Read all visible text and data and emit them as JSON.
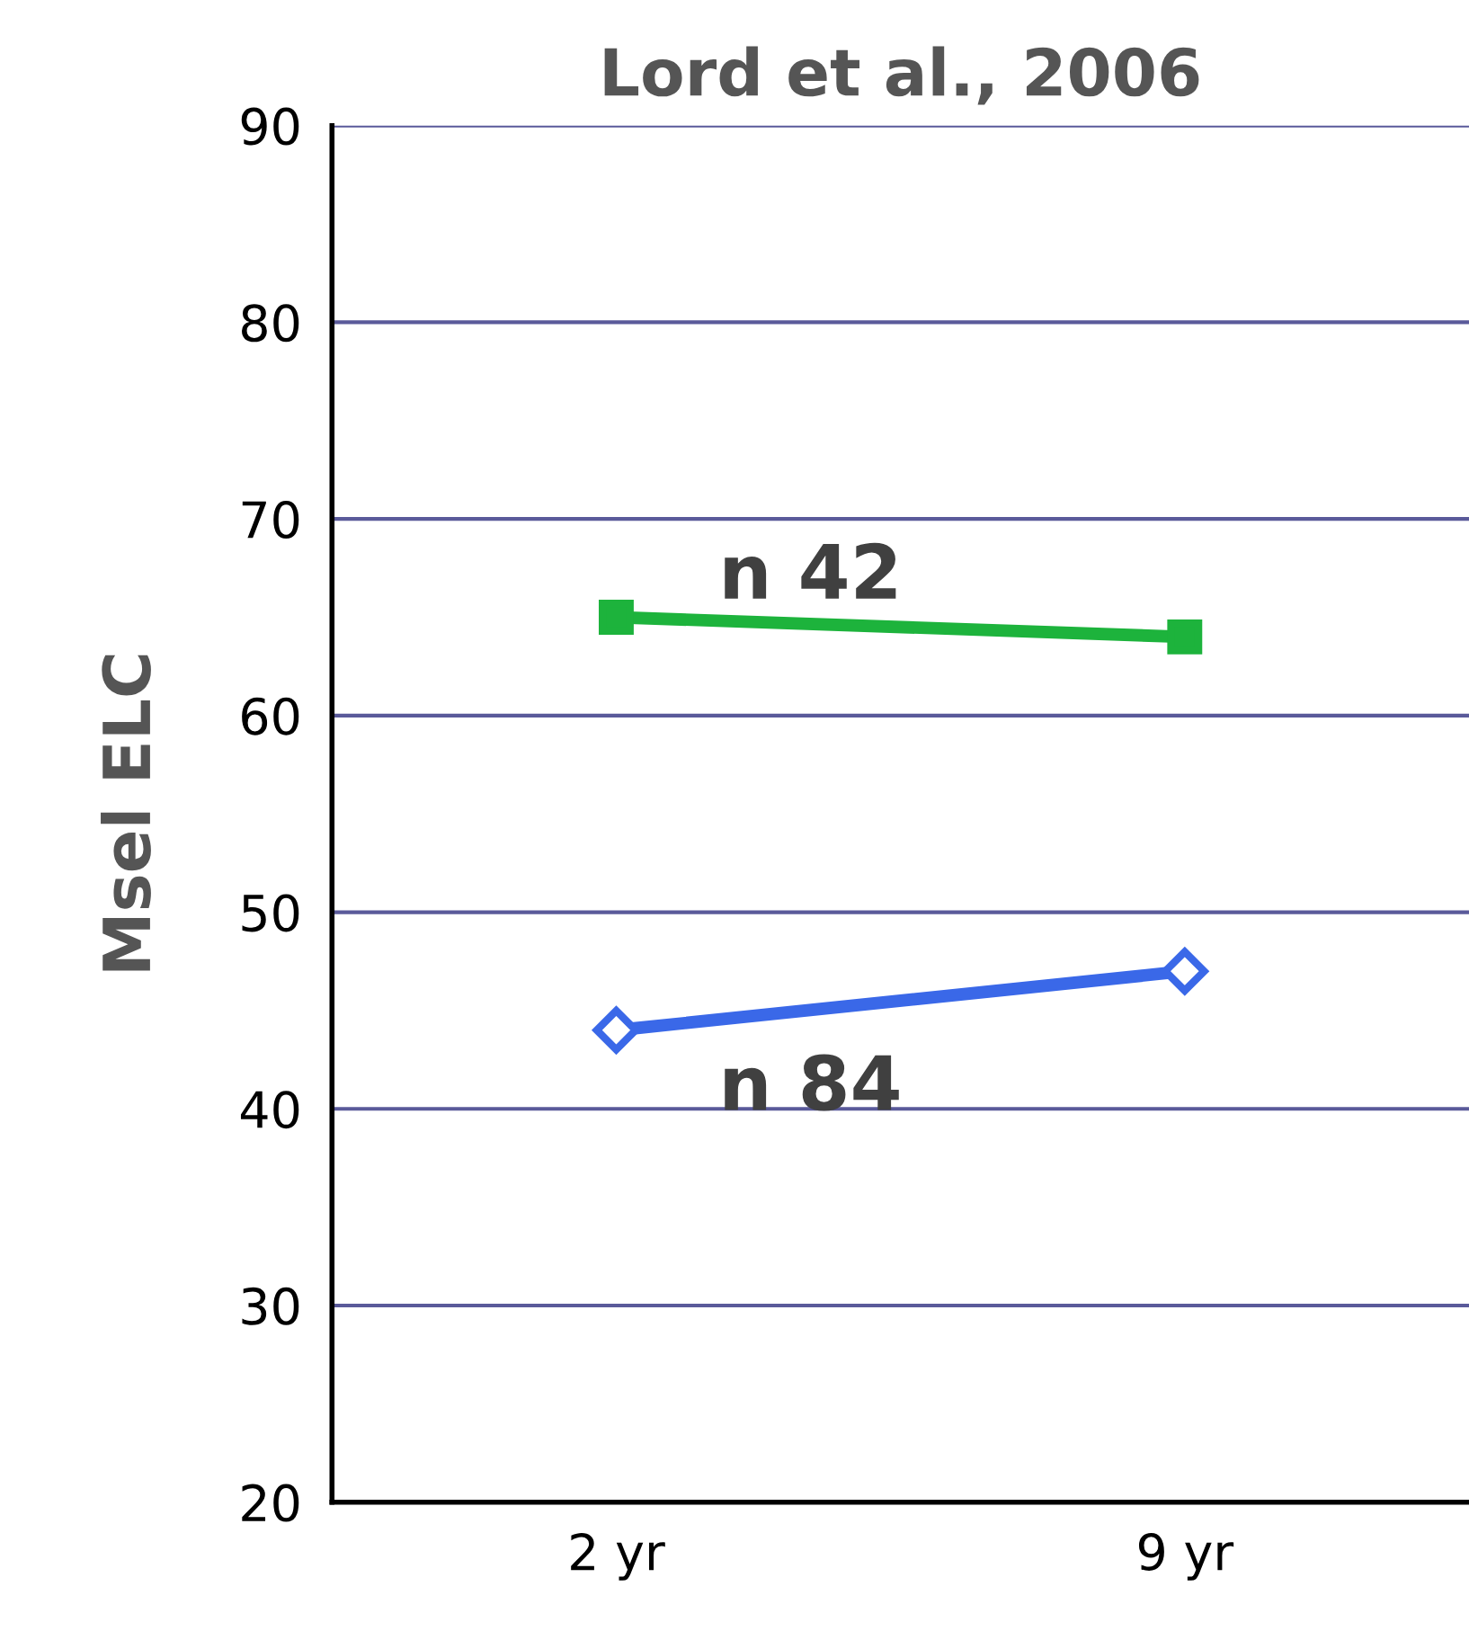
{
  "chart_data": {
    "type": "line",
    "title": "Lord et al., 2006",
    "ylabel": "Msel ELC",
    "categories": [
      "2 yr",
      "9 yr"
    ],
    "series": [
      {
        "name": "n 42",
        "color": "#1db33c",
        "values": [
          65,
          64
        ],
        "marker": "square"
      },
      {
        "name": "n 84",
        "color": "#3a68e8",
        "values": [
          44,
          47
        ],
        "marker": "diamond"
      }
    ],
    "ylim": [
      20,
      90
    ],
    "yticks": [
      20,
      30,
      40,
      50,
      60,
      70,
      80,
      90
    ],
    "grid": "y",
    "legend": false
  }
}
